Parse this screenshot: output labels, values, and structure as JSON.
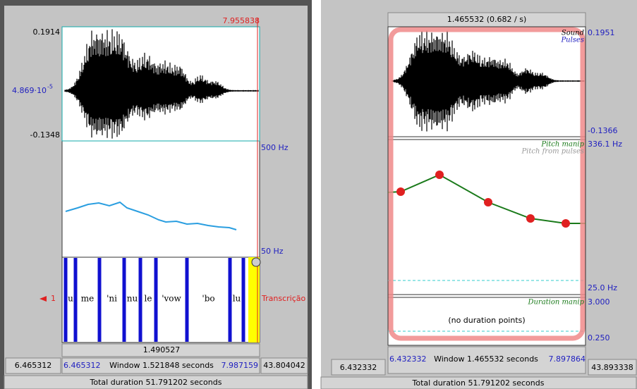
{
  "left": {
    "top_time": "7.955838",
    "y_max": "0.1914",
    "y_mid": {
      "mantissa": "4.869·10",
      "exponent": "-5"
    },
    "y_min": "-0.1348",
    "pitch_max": "500 Hz",
    "pitch_min": "50 Hz",
    "tier_number": "1",
    "tier_name": "Transcrição",
    "intervals": [
      "u",
      "me",
      "'ni",
      "nu",
      "le",
      "'vow",
      "'bo",
      "lu"
    ],
    "selection_duration": "1.490527",
    "visible_start": "6.465312",
    "window_start": "6.465312",
    "window_label": "Window 1.521848 seconds",
    "window_end": "7.987159",
    "visible_end": "43.804042",
    "total": "Total duration 51.791202 seconds"
  },
  "right": {
    "selection": "1.465532 (0.682 / s)",
    "sound_label": "Sound",
    "pulses_label": "Pulses",
    "sound_max": "0.1951",
    "sound_min": "-0.1366",
    "pitch_label": "Pitch manip",
    "pitch_pulses_label": "Pitch from pulses",
    "pitch_max": "336.1 Hz",
    "pitch_min": "25.0 Hz",
    "duration_label": "Duration manip",
    "duration_max": "3.000",
    "duration_note": "(no duration points)",
    "duration_min": "0.250",
    "visible_start": "6.432332",
    "window_start": "6.432332",
    "window_label": "Window 1.465532 seconds",
    "window_end": "7.897864",
    "visible_end": "43.893338",
    "total": "Total duration 51.791202 seconds"
  }
}
